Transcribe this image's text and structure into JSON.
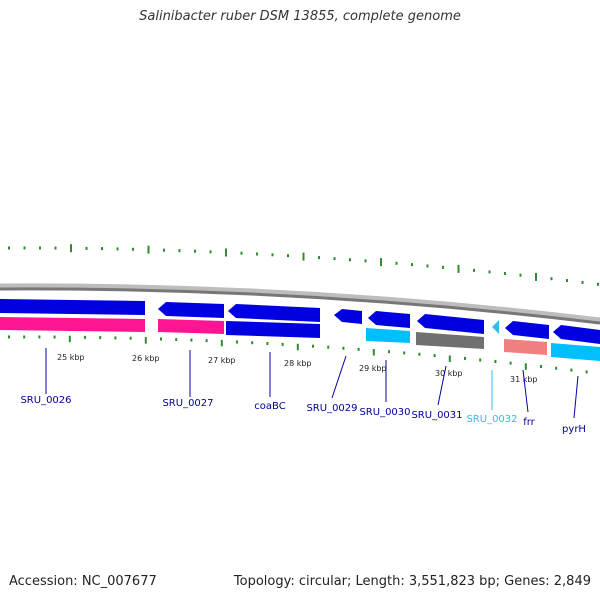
{
  "title": "Salinibacter ruber DSM 13855, complete genome",
  "footer": {
    "accession": "Accession: NC_007677",
    "summary": "Topology: circular; Length: 3,551,823 bp; Genes: 2,849"
  },
  "colors": {
    "backbone": "#888888",
    "tick": "#2e8b2e",
    "forward_cds": "#0000e0",
    "reverse_cds": "#0000e0",
    "label_line": "#0000aa",
    "label_text": "#000099",
    "highlight_text": "#33bbee"
  },
  "scale_labels": [
    {
      "text": "25 kbp",
      "kbp": 25
    },
    {
      "text": "26 kbp",
      "kbp": 26
    },
    {
      "text": "27 kbp",
      "kbp": 27
    },
    {
      "text": "28 kbp",
      "kbp": 28
    },
    {
      "text": "29 kbp",
      "kbp": 29
    },
    {
      "text": "30 kbp",
      "kbp": 30
    },
    {
      "text": "31 kbp",
      "kbp": 31
    }
  ],
  "feature_tracks": [
    {
      "name": "forward-track",
      "features": [
        {
          "id": "f1",
          "strand": "reverse",
          "color": "#0000e0"
        },
        {
          "id": "f2",
          "strand": "reverse",
          "color": "#0000e0"
        },
        {
          "id": "f3",
          "strand": "reverse",
          "color": "#0000e0"
        },
        {
          "id": "f4",
          "strand": "reverse",
          "color": "#0000e0"
        },
        {
          "id": "f5",
          "strand": "reverse",
          "color": "#0000e0"
        },
        {
          "id": "f6",
          "strand": "reverse",
          "color": "#0000e0"
        },
        {
          "id": "f7",
          "strand": "reverse",
          "color": "#0000e0"
        },
        {
          "id": "f8",
          "strand": "reverse",
          "color": "#0000e0"
        },
        {
          "id": "f9",
          "strand": "reverse",
          "color": "#0000e0"
        }
      ]
    },
    {
      "name": "category-track",
      "features": [
        {
          "id": "c1",
          "color": "#ff1493"
        },
        {
          "id": "c2",
          "color": "#ff1493"
        },
        {
          "id": "c3",
          "color": "#0000e0"
        },
        {
          "id": "c4",
          "color": "#00bfff"
        },
        {
          "id": "c5",
          "color": "#707070"
        },
        {
          "id": "c6",
          "color": "#00bfff"
        },
        {
          "id": "c7",
          "color": "#f08080"
        },
        {
          "id": "c8",
          "color": "#00bfff"
        }
      ]
    }
  ],
  "gene_labels": [
    {
      "text": "SRU_0026",
      "color": "#000099"
    },
    {
      "text": "SRU_0027",
      "color": "#000099"
    },
    {
      "text": "coaBC",
      "color": "#000099"
    },
    {
      "text": "SRU_0029",
      "color": "#000099"
    },
    {
      "text": "SRU_0030",
      "color": "#000099"
    },
    {
      "text": "SRU_0031",
      "color": "#000099"
    },
    {
      "text": "SRU_0032",
      "color": "#33bbee"
    },
    {
      "text": "frr",
      "color": "#000099"
    },
    {
      "text": "pyrH",
      "color": "#000099"
    }
  ]
}
